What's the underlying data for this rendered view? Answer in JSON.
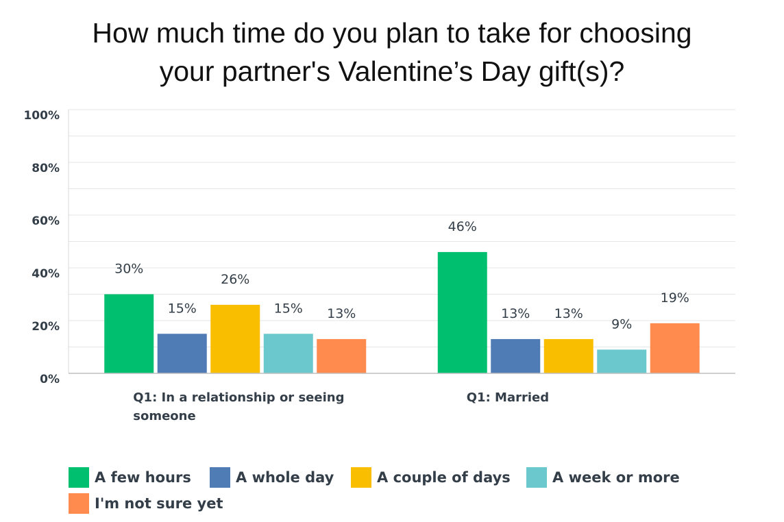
{
  "chart_data": {
    "type": "bar",
    "title_lines": [
      "How much time do you plan to take for choosing",
      "your partner's Valentine’s Day gift(s)?"
    ],
    "categories": [
      [
        "Q1: In a relationship or seeing",
        "someone"
      ],
      [
        "Q1: Married"
      ]
    ],
    "series": [
      {
        "name": "A few hours",
        "values": [
          30,
          46
        ],
        "labels": [
          "30%",
          "46%"
        ],
        "color": "#00bf6f"
      },
      {
        "name": "A whole day",
        "values": [
          15,
          13
        ],
        "labels": [
          "15%",
          "13%"
        ],
        "color": "#507cb6"
      },
      {
        "name": "A couple of days",
        "values": [
          26,
          13
        ],
        "labels": [
          "26%",
          "13%"
        ],
        "color": "#f9be00"
      },
      {
        "name": "A week or more",
        "values": [
          15,
          9
        ],
        "labels": [
          "15%",
          "9%"
        ],
        "color": "#6bc8cd"
      },
      {
        "name": "I'm not sure yet",
        "values": [
          13,
          19
        ],
        "labels": [
          "13%",
          "19%"
        ],
        "color": "#ff8b4f"
      }
    ],
    "ylim": [
      0,
      100
    ],
    "yticks": [
      "0%",
      "20%",
      "40%",
      "60%",
      "80%",
      "100%"
    ],
    "grid": true,
    "legend_position": "bottom"
  }
}
